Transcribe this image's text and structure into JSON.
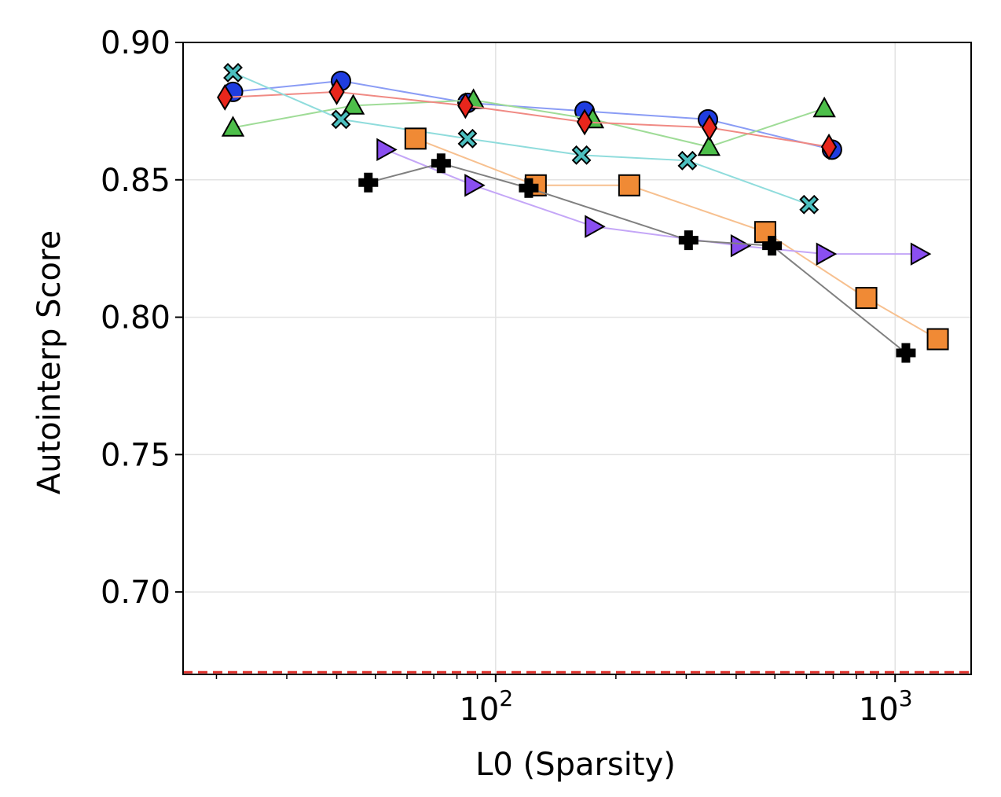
{
  "chart_data": {
    "type": "scatter",
    "title": "",
    "xlabel": "L0 (Sparsity)",
    "ylabel": "Autointerp Score",
    "xscale": "log",
    "xlim": [
      16.5,
      1550
    ],
    "ylim": [
      0.67,
      0.9
    ],
    "grid": true,
    "legend": "none",
    "yticks": [
      {
        "value": 0.7,
        "label": "0.70"
      },
      {
        "value": 0.75,
        "label": "0.75"
      },
      {
        "value": 0.8,
        "label": "0.80"
      },
      {
        "value": 0.85,
        "label": "0.85"
      },
      {
        "value": 0.9,
        "label": "0.90"
      }
    ],
    "xticks": [
      {
        "value": 100,
        "base": "10",
        "exp": "2"
      },
      {
        "value": 1000,
        "base": "10",
        "exp": "3"
      }
    ],
    "reference_line": {
      "y": 0.6708,
      "color": "#e0312b",
      "style": "dashed"
    },
    "series": [
      {
        "marker": "circle",
        "color": "#1f3de0",
        "line_color": "#8a9cf5",
        "points": [
          [
            22,
            0.882
          ],
          [
            41,
            0.886
          ],
          [
            85,
            0.878
          ],
          [
            167,
            0.875
          ],
          [
            340,
            0.872
          ],
          [
            695,
            0.861
          ]
        ]
      },
      {
        "marker": "triangle-up",
        "color": "#4dbf4a",
        "line_color": "#9fdc97",
        "points": [
          [
            22,
            0.869
          ],
          [
            44,
            0.877
          ],
          [
            88,
            0.879
          ],
          [
            175,
            0.872
          ],
          [
            342,
            0.862
          ],
          [
            665,
            0.876
          ]
        ]
      },
      {
        "marker": "diamond",
        "color": "#e8261c",
        "line_color": "#f08a84",
        "points": [
          [
            21,
            0.88
          ],
          [
            40,
            0.882
          ],
          [
            84,
            0.877
          ],
          [
            167,
            0.871
          ],
          [
            343,
            0.869
          ],
          [
            683,
            0.862
          ]
        ]
      },
      {
        "marker": "x",
        "color": "#4cc0c0",
        "line_color": "#8fdcdc",
        "points": [
          [
            22,
            0.889
          ],
          [
            41,
            0.872
          ],
          [
            85,
            0.865
          ],
          [
            164,
            0.859
          ],
          [
            302,
            0.857
          ],
          [
            609,
            0.841
          ]
        ]
      },
      {
        "marker": "square",
        "color": "#f08a35",
        "line_color": "#f7c08f",
        "points": [
          [
            63,
            0.865
          ],
          [
            126,
            0.848
          ],
          [
            216,
            0.848
          ],
          [
            473,
            0.831
          ],
          [
            847,
            0.807
          ],
          [
            1279,
            0.792
          ]
        ]
      },
      {
        "marker": "triangle-right",
        "color": "#8a4ff0",
        "line_color": "#c4a6f7",
        "points": [
          [
            53,
            0.861
          ],
          [
            88,
            0.848
          ],
          [
            176,
            0.833
          ],
          [
            408,
            0.826
          ],
          [
            668,
            0.823
          ],
          [
            1151,
            0.823
          ]
        ]
      },
      {
        "marker": "plus",
        "color": "#000000",
        "line_color": "#808080",
        "points": [
          [
            48,
            0.849
          ],
          [
            73,
            0.856
          ],
          [
            121,
            0.847
          ],
          [
            304,
            0.828
          ],
          [
            492,
            0.826
          ],
          [
            1064,
            0.787
          ]
        ]
      }
    ]
  }
}
